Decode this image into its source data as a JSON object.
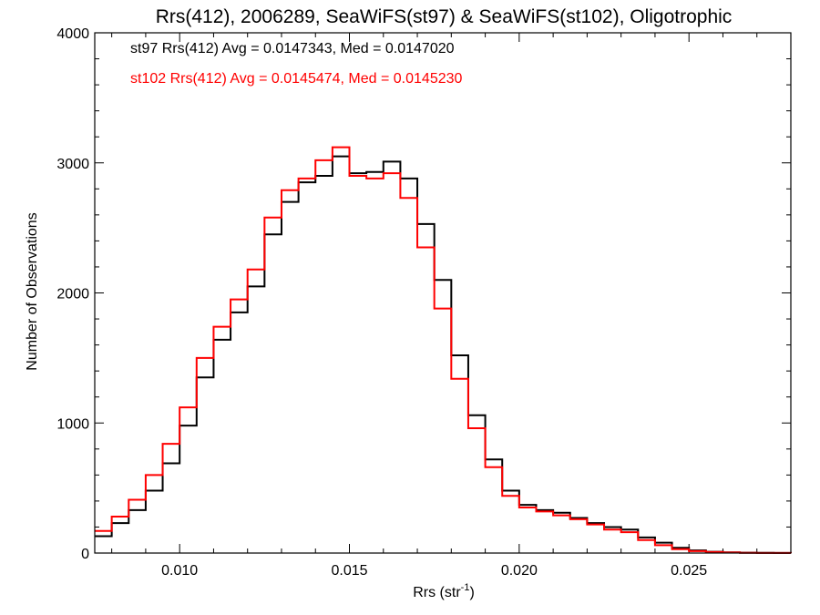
{
  "chart_data": {
    "type": "line",
    "style": "step-histogram",
    "title": "Rrs(412), 2006289, SeaWiFS(st97) & SeaWiFS(st102), Oligotrophic",
    "xlabel_main": "Rrs (str",
    "xlabel_sup": "-1",
    "xlabel_end": ")",
    "ylabel": "Number of Observations",
    "xlim": [
      0.0075,
      0.028
    ],
    "ylim": [
      0,
      4000
    ],
    "xticks": [
      0.01,
      0.015,
      0.02,
      0.025
    ],
    "xtick_labels": [
      "0.010",
      "0.015",
      "0.020",
      "0.025"
    ],
    "yticks": [
      0,
      1000,
      2000,
      3000,
      4000
    ],
    "ytick_labels": [
      "0",
      "1000",
      "2000",
      "3000",
      "4000"
    ],
    "grid": false,
    "legend_position": "top-left",
    "series": [
      {
        "name": "st97 Rrs(412) Avg = 0.0147343, Med = 0.0147020",
        "color": "#000000",
        "x": [
          0.0075,
          0.008,
          0.0085,
          0.009,
          0.0095,
          0.01,
          0.0105,
          0.011,
          0.0115,
          0.012,
          0.0125,
          0.013,
          0.0135,
          0.014,
          0.0145,
          0.015,
          0.0155,
          0.016,
          0.0165,
          0.017,
          0.0175,
          0.018,
          0.0185,
          0.019,
          0.0195,
          0.02,
          0.0205,
          0.021,
          0.0215,
          0.022,
          0.0225,
          0.023,
          0.0235,
          0.024,
          0.0245,
          0.025,
          0.0255,
          0.026,
          0.0265,
          0.027,
          0.0275,
          0.028
        ],
        "y": [
          130,
          230,
          330,
          480,
          690,
          980,
          1350,
          1640,
          1850,
          2050,
          2450,
          2700,
          2850,
          2900,
          3050,
          2920,
          2930,
          3010,
          2880,
          2530,
          2100,
          1520,
          1060,
          720,
          480,
          370,
          330,
          310,
          270,
          230,
          200,
          180,
          120,
          80,
          40,
          20,
          10,
          5,
          3,
          2,
          1,
          0
        ]
      },
      {
        "name": "st102 Rrs(412) Avg = 0.0145474, Med = 0.0145230",
        "color": "#ff0000",
        "x": [
          0.0075,
          0.008,
          0.0085,
          0.009,
          0.0095,
          0.01,
          0.0105,
          0.011,
          0.0115,
          0.012,
          0.0125,
          0.013,
          0.0135,
          0.014,
          0.0145,
          0.015,
          0.0155,
          0.016,
          0.0165,
          0.017,
          0.0175,
          0.018,
          0.0185,
          0.019,
          0.0195,
          0.02,
          0.0205,
          0.021,
          0.0215,
          0.022,
          0.0225,
          0.023,
          0.0235,
          0.024,
          0.0245,
          0.025,
          0.0255,
          0.026,
          0.0265,
          0.027,
          0.0275,
          0.028
        ],
        "y": [
          170,
          280,
          410,
          600,
          840,
          1120,
          1500,
          1740,
          1950,
          2180,
          2580,
          2790,
          2880,
          3020,
          3120,
          2900,
          2880,
          2920,
          2730,
          2350,
          1880,
          1340,
          960,
          660,
          440,
          350,
          320,
          290,
          260,
          220,
          180,
          160,
          100,
          60,
          30,
          15,
          8,
          4,
          2,
          1,
          1,
          0
        ]
      }
    ]
  }
}
